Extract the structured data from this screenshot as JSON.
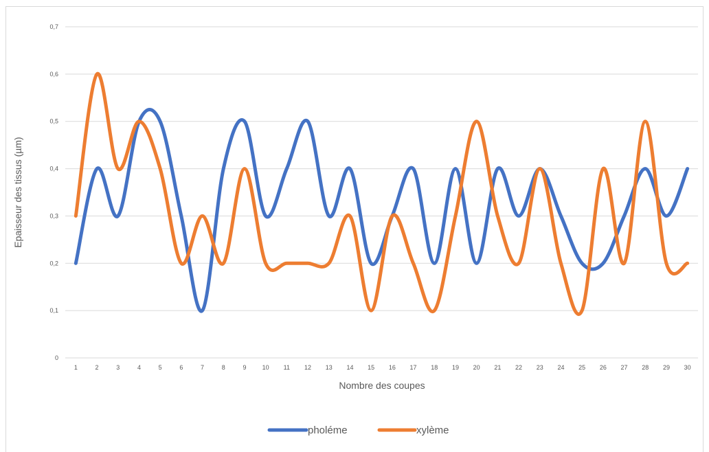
{
  "chart_data": {
    "type": "line",
    "title": "",
    "xlabel": "Nombre des coupes",
    "ylabel": "Epaisseur des tissus (µm)",
    "categories": [
      "1",
      "2",
      "3",
      "4",
      "5",
      "6",
      "7",
      "8",
      "9",
      "10",
      "11",
      "12",
      "13",
      "14",
      "15",
      "16",
      "17",
      "18",
      "19",
      "20",
      "21",
      "22",
      "23",
      "24",
      "25",
      "26",
      "27",
      "28",
      "29",
      "30"
    ],
    "ylim": [
      0,
      0.7
    ],
    "yticks": [
      0,
      0.1,
      0.2,
      0.3,
      0.4,
      0.5,
      0.6,
      0.7
    ],
    "ytick_labels": [
      "0",
      "0,1",
      "0,2",
      "0,3",
      "0,4",
      "0,5",
      "0,6",
      "0,7"
    ],
    "grid": true,
    "smooth": true,
    "legend": "bottom",
    "series": [
      {
        "name": "pholéme",
        "color": "#4472C4",
        "values": [
          0.2,
          0.4,
          0.3,
          0.5,
          0.5,
          0.3,
          0.1,
          0.4,
          0.5,
          0.3,
          0.4,
          0.5,
          0.3,
          0.4,
          0.2,
          0.3,
          0.4,
          0.2,
          0.4,
          0.2,
          0.4,
          0.3,
          0.4,
          0.3,
          0.2,
          0.2,
          0.3,
          0.4,
          0.3,
          0.4
        ]
      },
      {
        "name": "xylème",
        "color": "#ED7D31",
        "values": [
          0.3,
          0.6,
          0.4,
          0.5,
          0.4,
          0.2,
          0.3,
          0.2,
          0.4,
          0.2,
          0.2,
          0.2,
          0.2,
          0.3,
          0.1,
          0.3,
          0.2,
          0.1,
          0.3,
          0.5,
          0.3,
          0.2,
          0.4,
          0.2,
          0.1,
          0.4,
          0.2,
          0.5,
          0.2,
          0.2
        ]
      }
    ]
  }
}
